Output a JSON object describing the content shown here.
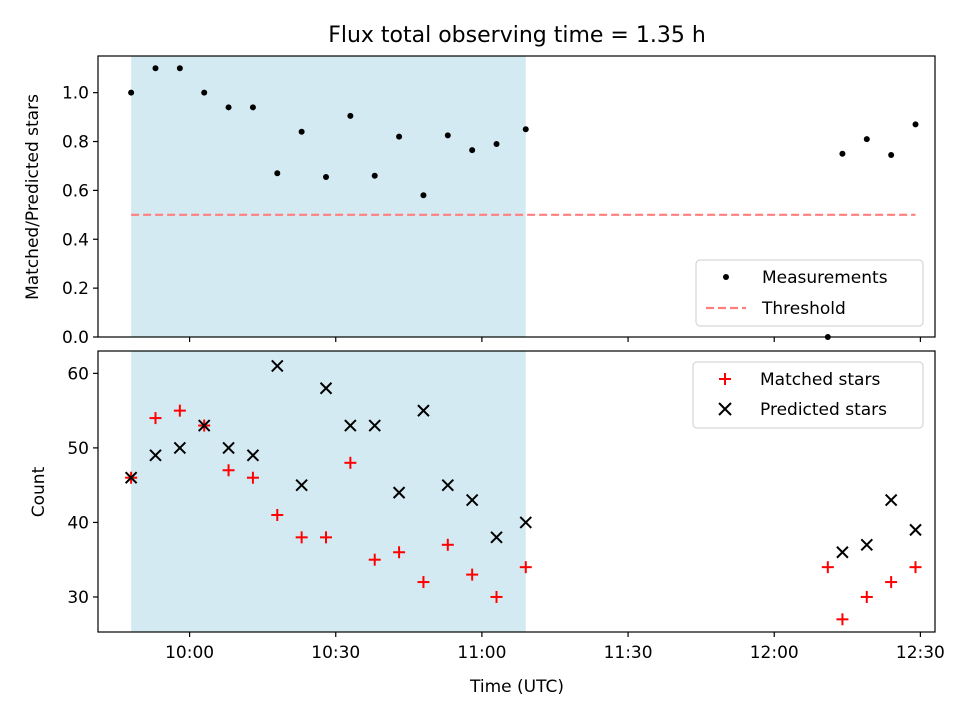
{
  "figure": {
    "title": "Flux total observing time = 1.35 h"
  },
  "colors": {
    "shade": "#add8e6",
    "threshold": "#ff7f7f",
    "matched": "#ff0000",
    "predicted": "#000000",
    "measurements": "#000000"
  },
  "chart_data": [
    {
      "type": "scatter",
      "ylabel": "Matched/Predicted stars",
      "ylim": [
        0.0,
        1.15
      ],
      "y_ticks": [
        "0.0",
        "0.2",
        "0.4",
        "0.6",
        "0.8",
        "1.0"
      ],
      "shaded_time_range": [
        "09:48",
        "11:09"
      ],
      "legend": {
        "position": "lower right"
      },
      "series": [
        {
          "name": "Measurements",
          "marker": "dot",
          "x": [
            "09:48",
            "09:53",
            "09:58",
            "10:03",
            "10:08",
            "10:13",
            "10:18",
            "10:23",
            "10:28",
            "10:33",
            "10:38",
            "10:43",
            "10:48",
            "10:53",
            "10:58",
            "11:03",
            "11:09",
            "12:11",
            "12:14",
            "12:19",
            "12:24",
            "12:29"
          ],
          "y": [
            1.0,
            1.1,
            1.1,
            1.0,
            0.94,
            0.94,
            0.67,
            0.84,
            0.655,
            0.905,
            0.66,
            0.82,
            0.58,
            0.825,
            0.765,
            0.79,
            0.85,
            0.0,
            0.75,
            0.81,
            0.745,
            0.87
          ]
        },
        {
          "name": "Threshold",
          "style": "dashed",
          "x": [
            "09:48",
            "12:29"
          ],
          "y": [
            0.5,
            0.5
          ]
        }
      ]
    },
    {
      "type": "scatter",
      "xlabel": "Time (UTC)",
      "ylabel": "Count",
      "ylim": [
        25.3,
        63.0
      ],
      "y_ticks": [
        "30",
        "40",
        "50",
        "60"
      ],
      "x_ticks": [
        "10:00",
        "10:30",
        "11:00",
        "11:30",
        "12:00",
        "12:30"
      ],
      "shaded_time_range": [
        "09:48",
        "11:09"
      ],
      "legend": {
        "position": "upper right"
      },
      "series": [
        {
          "name": "Matched stars",
          "marker": "plus",
          "x": [
            "09:48",
            "09:53",
            "09:58",
            "10:03",
            "10:08",
            "10:13",
            "10:18",
            "10:23",
            "10:28",
            "10:33",
            "10:38",
            "10:43",
            "10:48",
            "10:53",
            "10:58",
            "11:03",
            "11:09",
            "12:11",
            "12:14",
            "12:19",
            "12:24",
            "12:29"
          ],
          "y": [
            46,
            54,
            55,
            53,
            47,
            46,
            41,
            38,
            38,
            48,
            35,
            36,
            32,
            37,
            33,
            30,
            34,
            34,
            27,
            30,
            32,
            34
          ]
        },
        {
          "name": "Predicted stars",
          "marker": "x",
          "x": [
            "09:48",
            "09:53",
            "09:58",
            "10:03",
            "10:08",
            "10:13",
            "10:18",
            "10:23",
            "10:28",
            "10:33",
            "10:38",
            "10:43",
            "10:48",
            "10:53",
            "10:58",
            "11:03",
            "11:09",
            "12:14",
            "12:19",
            "12:24",
            "12:29"
          ],
          "y": [
            46,
            49,
            50,
            53,
            50,
            49,
            61,
            45,
            58,
            53,
            53,
            44,
            55,
            45,
            43,
            38,
            40,
            36,
            37,
            43,
            39
          ]
        }
      ]
    }
  ]
}
